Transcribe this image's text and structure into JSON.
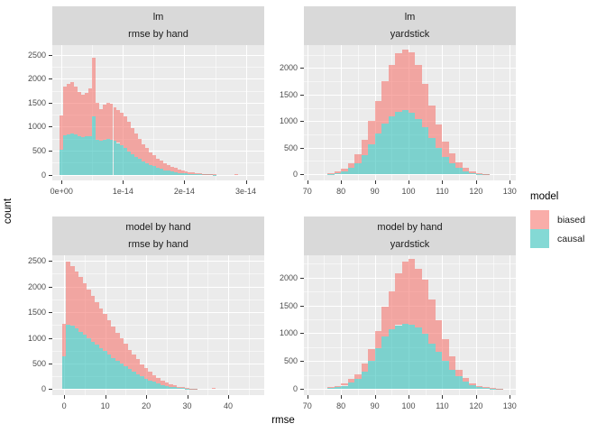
{
  "chart_data": {
    "type": "bar",
    "subtype": "stacked-histogram-facets",
    "xlabel": "rmse",
    "ylabel": "count",
    "colors": {
      "biased": "rgba(246,122,116,0.62)",
      "causal": "rgba(56,193,187,0.62)",
      "panel_bg": "#EBEBEB",
      "strip_bg": "#D9D9D9",
      "grid": "#FFFFFF",
      "axis_text": "#4D4D4D"
    },
    "legend": {
      "title": "model",
      "entries": [
        {
          "label": "biased",
          "color": "rgba(246,122,116,0.62)"
        },
        {
          "label": "causal",
          "color": "rgba(56,193,187,0.62)"
        }
      ],
      "position": "right"
    },
    "facets": [
      {
        "strip1": "lm",
        "strip2": "rmse by hand",
        "x_unit_note": "x values in units of 1e-14",
        "x_domain": [
          -0.15,
          3.3
        ],
        "y_domain": [
          -120,
          2700
        ],
        "x_major": [
          0,
          1,
          2,
          3
        ],
        "x_minor": [
          0.5,
          1.5,
          2.5
        ],
        "x_tick_labels": [
          "0e+00",
          "1e-14",
          "2e-14",
          "3e-14"
        ],
        "y_ticks": [
          0,
          500,
          1000,
          1500,
          2000,
          2500
        ],
        "y_tick_labels": [
          "0",
          "500",
          "1000",
          "1500",
          "2000",
          "2500"
        ],
        "bins": {
          "x0": 0,
          "width": 0.058,
          "totals": [
            1230,
            1830,
            1890,
            1930,
            1840,
            1720,
            1670,
            1700,
            1790,
            2430,
            1500,
            1360,
            1450,
            1500,
            1470,
            1410,
            1350,
            1290,
            1210,
            1100,
            970,
            850,
            740,
            640,
            550,
            470,
            400,
            340,
            290,
            240,
            200,
            165,
            135,
            110,
            88,
            70,
            55,
            42,
            32,
            24,
            18,
            13,
            9,
            6
          ],
          "causal": [
            510,
            820,
            845,
            850,
            835,
            810,
            790,
            795,
            800,
            1210,
            730,
            710,
            730,
            740,
            730,
            700,
            660,
            610,
            550,
            490,
            430,
            375,
            325,
            280,
            240,
            205,
            172,
            143,
            118,
            96,
            78,
            62,
            49,
            38,
            29,
            22,
            17,
            13,
            10,
            7,
            5,
            4,
            3,
            2
          ]
        },
        "extra_bars": [
          {
            "x": 2.85,
            "total": 16,
            "causal": 0
          }
        ]
      },
      {
        "strip1": "lm",
        "strip2": "yardstick",
        "x_domain": [
          69.0,
          131.8
        ],
        "y_domain": [
          -115,
          2430
        ],
        "x_major": [
          70,
          80,
          90,
          100,
          110,
          120,
          130
        ],
        "x_minor": [
          75,
          85,
          95,
          105,
          115,
          125
        ],
        "x_tick_labels": [
          "70",
          "80",
          "90",
          "100",
          "110",
          "120",
          "130"
        ],
        "y_ticks": [
          0,
          500,
          1000,
          1500,
          2000
        ],
        "y_tick_labels": [
          "0",
          "500",
          "1000",
          "1500",
          "2000"
        ],
        "bins": {
          "x0": 77,
          "width": 2,
          "totals": [
            25,
            50,
            110,
            210,
            380,
            650,
            1000,
            1380,
            1750,
            2050,
            2270,
            2350,
            2290,
            2050,
            1700,
            1300,
            930,
            620,
            390,
            220,
            115,
            55,
            25,
            10
          ],
          "causal": [
            12,
            25,
            60,
            115,
            210,
            360,
            560,
            760,
            950,
            1090,
            1180,
            1210,
            1160,
            1040,
            880,
            680,
            490,
            330,
            205,
            115,
            60,
            28,
            12,
            5
          ]
        },
        "extra_bars": []
      },
      {
        "strip1": "model by hand",
        "strip2": "rmse by hand",
        "x_domain": [
          -2.9,
          48.8
        ],
        "y_domain": [
          -115,
          2610
        ],
        "x_major": [
          0,
          10,
          20,
          30,
          40
        ],
        "x_minor": [
          5,
          15,
          25,
          35,
          45
        ],
        "x_tick_labels": [
          "0",
          "10",
          "20",
          "30",
          "40"
        ],
        "y_ticks": [
          0,
          500,
          1000,
          1500,
          2000,
          2500
        ],
        "y_tick_labels": [
          "0",
          "500",
          "1000",
          "1500",
          "2000",
          "2500"
        ],
        "bins": {
          "x0": 0,
          "width": 1,
          "totals": [
            1270,
            2480,
            2400,
            2300,
            2180,
            2060,
            1940,
            1820,
            1700,
            1580,
            1460,
            1340,
            1220,
            1100,
            990,
            880,
            770,
            670,
            580,
            490,
            410,
            340,
            280,
            220,
            170,
            130,
            95,
            70,
            50,
            35,
            22,
            14,
            8
          ],
          "causal": [
            640,
            1250,
            1230,
            1180,
            1120,
            1060,
            1000,
            930,
            870,
            800,
            740,
            680,
            610,
            550,
            500,
            440,
            390,
            340,
            290,
            250,
            210,
            170,
            140,
            110,
            85,
            65,
            48,
            35,
            25,
            18,
            11,
            7,
            4
          ]
        },
        "extra_bars": [
          {
            "x": 36.5,
            "total": 22,
            "causal": 0
          }
        ]
      },
      {
        "strip1": "model by hand",
        "strip2": "yardstick",
        "x_domain": [
          69.0,
          131.8
        ],
        "y_domain": [
          -110,
          2400
        ],
        "x_major": [
          70,
          80,
          90,
          100,
          110,
          120,
          130
        ],
        "x_minor": [
          75,
          85,
          95,
          105,
          115,
          125
        ],
        "x_tick_labels": [
          "70",
          "80",
          "90",
          "100",
          "110",
          "120",
          "130"
        ],
        "y_ticks": [
          0,
          500,
          1000,
          1500,
          2000
        ],
        "y_tick_labels": [
          "0",
          "500",
          "1000",
          "1500",
          "2000"
        ],
        "bins": {
          "x0": 77,
          "width": 2,
          "totals": [
            40,
            60,
            95,
            185,
            270,
            450,
            715,
            1040,
            1480,
            1750,
            2080,
            2290,
            2330,
            2150,
            1960,
            1610,
            1240,
            890,
            590,
            350,
            190,
            100,
            55,
            28,
            16,
            8
          ],
          "causal": [
            25,
            38,
            60,
            120,
            180,
            310,
            500,
            735,
            940,
            1075,
            1145,
            1170,
            1155,
            1100,
            995,
            820,
            670,
            500,
            350,
            230,
            135,
            70,
            38,
            16,
            8,
            4
          ]
        },
        "extra_bars": []
      }
    ]
  }
}
